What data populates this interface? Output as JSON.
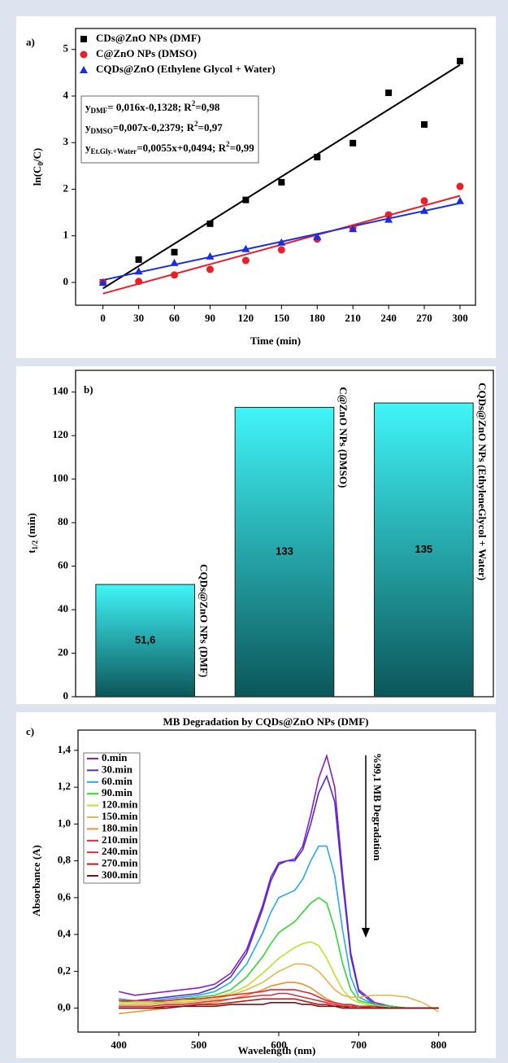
{
  "chart_data": [
    {
      "type": "scatter",
      "panel_label": "a)",
      "xlabel": "Time (min)",
      "ylabel": {
        "text": "ln(C",
        "sub": "0",
        "tail": "/C)"
      },
      "x": [
        0,
        30,
        60,
        90,
        120,
        150,
        180,
        210,
        240,
        270,
        300
      ],
      "xlim": [
        -23,
        313
      ],
      "ylim": [
        -0.49,
        5.45
      ],
      "xticks": [
        0,
        30,
        60,
        90,
        120,
        150,
        180,
        210,
        240,
        270,
        300
      ],
      "yticks": [
        0,
        1,
        2,
        3,
        4,
        5
      ],
      "series": [
        {
          "name": "CDs@ZnO NPs (DMF)",
          "color": "#000000",
          "marker": "square",
          "values": [
            0,
            0.49,
            0.65,
            1.26,
            1.77,
            2.15,
            2.69,
            2.99,
            4.07,
            3.39,
            4.75
          ],
          "fit_x": [
            0,
            300
          ],
          "fit_values": [
            -0.13,
            4.67
          ]
        },
        {
          "name": "C@ZnO NPs (DMSO)",
          "color": "#e8202a",
          "marker": "circle",
          "values": [
            0,
            0.02,
            0.16,
            0.28,
            0.47,
            0.7,
            0.93,
            1.17,
            1.45,
            1.75,
            2.06
          ],
          "fit_x": [
            0,
            300
          ],
          "fit_values": [
            -0.24,
            1.86
          ]
        },
        {
          "name": "CQDs@ZnO (Ethylene Glycol + Water)",
          "color": "#1a2ee0",
          "marker": "triangle",
          "values": [
            0,
            0.24,
            0.42,
            0.56,
            0.72,
            0.86,
            0.98,
            1.15,
            1.35,
            1.54,
            1.75
          ],
          "fit_x": [
            0,
            300
          ],
          "fit_values": [
            0.05,
            1.7
          ]
        }
      ],
      "equations": [
        {
          "lhs": "y",
          "sub": "DMF",
          "rhs": "= 0,016x-0,1328; R",
          "sup": "2",
          "tail": "=0,98"
        },
        {
          "lhs": "y",
          "sub": "DMSO",
          "rhs": "=0,007x-0,2379; R",
          "sup": "2",
          "tail": "=0,97"
        },
        {
          "lhs": "y",
          "sub": "Et.Gly.+Water",
          "rhs": "=0,0055x+0,0494; R",
          "sup": "2",
          "tail": "=0,99"
        }
      ]
    },
    {
      "type": "bar",
      "panel_label": "b)",
      "ylabel": {
        "text": "t",
        "sub": "1/2",
        "tail": " (min)"
      },
      "categories": [
        "CQDs@ZnO NPs (DMF)",
        "C@ZnO NPs (DMSO)",
        "CQDs@ZnO NPs (EthyleneGlycol + Water)"
      ],
      "values": [
        51.6,
        133,
        135
      ],
      "value_labels": [
        "51,6",
        "133",
        "135"
      ],
      "gradient_colors": [
        "#40f5f8",
        "#0b5659"
      ],
      "ylim": [
        0,
        150
      ],
      "yticks": [
        0,
        20,
        40,
        60,
        80,
        100,
        120,
        140
      ]
    },
    {
      "type": "line",
      "panel_label": "c)",
      "title": "MB Degradation by CQDs@ZnO NPs (DMF)",
      "xlabel": "Wavelength (nm)",
      "ylabel": "Absorbance (A)",
      "annotation": "%99,1 MB Degradation",
      "x": [
        400,
        420,
        440,
        460,
        480,
        500,
        520,
        540,
        560,
        580,
        590,
        600,
        610,
        620,
        630,
        640,
        650,
        660,
        670,
        680,
        690,
        700,
        720,
        740,
        760,
        780,
        800
      ],
      "xlim": [
        349,
        846
      ],
      "ylim": [
        -0.13,
        1.51
      ],
      "xticks": [
        400,
        500,
        600,
        700,
        800
      ],
      "yticks": [
        {
          "value": 0,
          "label": "0,0"
        },
        {
          "value": 0.2,
          "label": "0,2"
        },
        {
          "value": 0.4,
          "label": "0,4"
        },
        {
          "value": 0.6,
          "label": "0,6"
        },
        {
          "value": 0.8,
          "label": "0,8"
        },
        {
          "value": 1,
          "label": "1,0"
        },
        {
          "value": 1.2,
          "label": "1,2"
        },
        {
          "value": 1.4,
          "label": "1,4"
        }
      ],
      "series": [
        {
          "name": "0.min",
          "color": "#8a1fc4",
          "values": [
            0.09,
            0.07,
            0.08,
            0.09,
            0.1,
            0.11,
            0.13,
            0.19,
            0.32,
            0.56,
            0.71,
            0.79,
            0.8,
            0.81,
            0.88,
            1.05,
            1.25,
            1.37,
            1.2,
            0.72,
            0.3,
            0.1,
            0.03,
            0.01,
            0,
            0,
            0
          ]
        },
        {
          "name": "30.min",
          "color": "#4a2fd8",
          "values": [
            0.05,
            0.04,
            0.05,
            0.06,
            0.07,
            0.08,
            0.11,
            0.17,
            0.3,
            0.54,
            0.69,
            0.78,
            0.8,
            0.8,
            0.86,
            1,
            1.17,
            1.26,
            1.12,
            0.68,
            0.28,
            0.09,
            0.02,
            0.01,
            0,
            0,
            0
          ]
        },
        {
          "name": "60.min",
          "color": "#29a9e6",
          "values": [
            0.05,
            0.04,
            0.04,
            0.05,
            0.06,
            0.07,
            0.09,
            0.14,
            0.24,
            0.41,
            0.52,
            0.6,
            0.62,
            0.64,
            0.7,
            0.8,
            0.88,
            0.88,
            0.72,
            0.42,
            0.17,
            0.06,
            0.02,
            0.01,
            0,
            0,
            0
          ]
        },
        {
          "name": "90.min",
          "color": "#33d633",
          "values": [
            0.04,
            0.03,
            0.03,
            0.04,
            0.05,
            0.06,
            0.07,
            0.1,
            0.17,
            0.28,
            0.35,
            0.41,
            0.44,
            0.47,
            0.52,
            0.57,
            0.6,
            0.57,
            0.43,
            0.24,
            0.1,
            0.04,
            0.02,
            0.01,
            0,
            0,
            0
          ]
        },
        {
          "name": "120.min",
          "color": "#b9e32a",
          "values": [
            0.03,
            0.03,
            0.03,
            0.03,
            0.04,
            0.05,
            0.06,
            0.08,
            0.12,
            0.19,
            0.23,
            0.27,
            0.3,
            0.33,
            0.35,
            0.36,
            0.34,
            0.27,
            0.18,
            0.1,
            0.05,
            0.03,
            0.01,
            0,
            0,
            0,
            0
          ]
        },
        {
          "name": "150.min",
          "color": "#e6b450",
          "values": [
            0.02,
            0.02,
            0.02,
            0.03,
            0.03,
            0.04,
            0.05,
            0.07,
            0.1,
            0.14,
            0.17,
            0.2,
            0.22,
            0.24,
            0.24,
            0.23,
            0.2,
            0.15,
            0.1,
            0.07,
            0.06,
            0.06,
            0.07,
            0.07,
            0.06,
            0.03,
            -0.02
          ]
        },
        {
          "name": "180.min",
          "color": "#f0902e",
          "values": [
            -0.03,
            -0.02,
            -0.01,
            0,
            0.01,
            0.02,
            0.03,
            0.05,
            0.07,
            0.1,
            0.12,
            0.13,
            0.14,
            0.14,
            0.13,
            0.11,
            0.08,
            0.05,
            0.03,
            0.02,
            0.01,
            0,
            0,
            0,
            0,
            0,
            0
          ]
        },
        {
          "name": "210.min",
          "color": "#e8262a",
          "values": [
            0.04,
            0.04,
            0.04,
            0.04,
            0.05,
            0.05,
            0.06,
            0.07,
            0.08,
            0.09,
            0.1,
            0.1,
            0.1,
            0.1,
            0.09,
            0.08,
            0.06,
            0.04,
            0.03,
            0.02,
            0.02,
            0.01,
            0.01,
            0,
            0,
            0,
            0
          ]
        },
        {
          "name": "240.min",
          "color": "#d4323c",
          "values": [
            0.01,
            0.01,
            0.01,
            0.02,
            0.02,
            0.03,
            0.04,
            0.05,
            0.06,
            0.07,
            0.07,
            0.08,
            0.08,
            0.07,
            0.06,
            0.05,
            0.04,
            0.03,
            0.02,
            0.01,
            0.01,
            0.01,
            0,
            0,
            0,
            0,
            0
          ]
        },
        {
          "name": "270.min",
          "color": "#b81c1c",
          "values": [
            0,
            0,
            0,
            0.01,
            0.01,
            0.02,
            0.02,
            0.03,
            0.04,
            0.05,
            0.05,
            0.05,
            0.05,
            0.05,
            0.04,
            0.03,
            0.02,
            0.02,
            0.01,
            0.01,
            0,
            0,
            0,
            0,
            0,
            0,
            0
          ]
        },
        {
          "name": "300.min",
          "color": "#7a1414",
          "values": [
            0,
            0,
            0,
            0,
            0.01,
            0.01,
            0.01,
            0.02,
            0.02,
            0.02,
            0.03,
            0.03,
            0.03,
            0.03,
            0.02,
            0.02,
            0.01,
            0.01,
            0.01,
            0,
            0,
            0,
            0,
            0,
            0,
            0,
            0
          ]
        }
      ]
    }
  ]
}
